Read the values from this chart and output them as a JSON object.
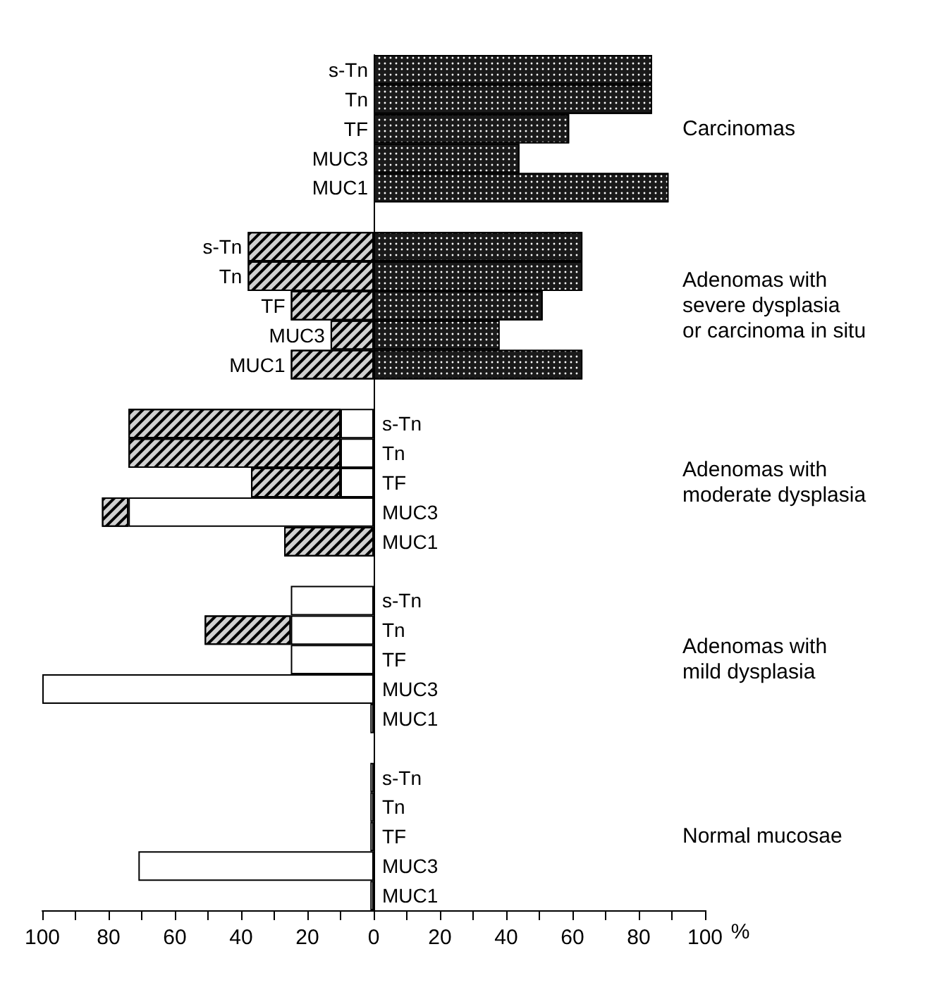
{
  "chart_data": {
    "type": "bar",
    "orientation": "horizontal",
    "stacked": true,
    "categories": [
      "s-Tn",
      "Tn",
      "TF",
      "MUC3",
      "MUC1",
      null,
      "s-Tn",
      "Tn",
      "TF",
      "MUC3",
      "MUC1",
      null,
      "s-Tn",
      "Tn",
      "TF",
      "MUC3",
      "MUC1",
      null,
      "s-Tn",
      "Tn",
      "TF",
      "MUC3",
      "MUC1",
      null,
      "s-Tn",
      "Tn",
      "TF",
      "MUC3",
      "MUC1"
    ],
    "series": [
      {
        "color": "#ffffff",
        "values": [
          null,
          null,
          null,
          null,
          null,
          null,
          null,
          null,
          null,
          null,
          null,
          null,
          -10,
          -10,
          -10,
          -74,
          null,
          null,
          -25,
          -25,
          -25,
          -100,
          -1,
          null,
          -1,
          -1,
          -1,
          -71,
          -1
        ]
      },
      {
        "color": "#d0d0d0",
        "values": [
          null,
          null,
          null,
          null,
          null,
          null,
          -38,
          -38,
          -25,
          -13,
          -25,
          null,
          -64,
          -64,
          -27,
          -8,
          -27,
          null,
          null,
          -26,
          null,
          null,
          null,
          null,
          null,
          null,
          null,
          null,
          null
        ]
      },
      {
        "color": "#1a1a1a",
        "values": [
          84,
          84,
          59,
          44,
          89,
          null,
          63,
          63,
          51,
          38,
          63,
          null,
          null,
          null,
          null,
          null,
          null,
          null,
          null,
          null,
          null,
          null,
          null,
          null,
          null,
          null,
          null,
          null,
          null
        ]
      }
    ],
    "xlim": [
      -100,
      100
    ],
    "xticks": [
      {
        "value": -100,
        "label": "100"
      },
      {
        "value": -90,
        "label": null
      },
      {
        "value": -80,
        "label": "80"
      },
      {
        "value": -70,
        "label": null
      },
      {
        "value": -60,
        "label": "60"
      },
      {
        "value": -50,
        "label": null
      },
      {
        "value": -40,
        "label": "40"
      },
      {
        "value": -30,
        "label": null
      },
      {
        "value": -20,
        "label": "20"
      },
      {
        "value": -10,
        "label": null
      },
      0,
      {
        "value": 10,
        "label": null
      },
      20,
      {
        "value": 30,
        "label": null
      },
      40,
      {
        "value": 50,
        "label": null
      },
      60,
      {
        "value": 70,
        "label": null
      },
      80,
      {
        "value": 90,
        "label": null
      },
      100
    ],
    "xlabel": "%",
    "annotations": [
      "Carcinomas",
      "Adenomas with\nsevere dysplasia\nor carcinoma in situ",
      "Adenomas with\nmoderate dysplasia",
      "Adenomas with\nmild dysplasia",
      "Normal mucosae"
    ],
    "grid": false
  }
}
